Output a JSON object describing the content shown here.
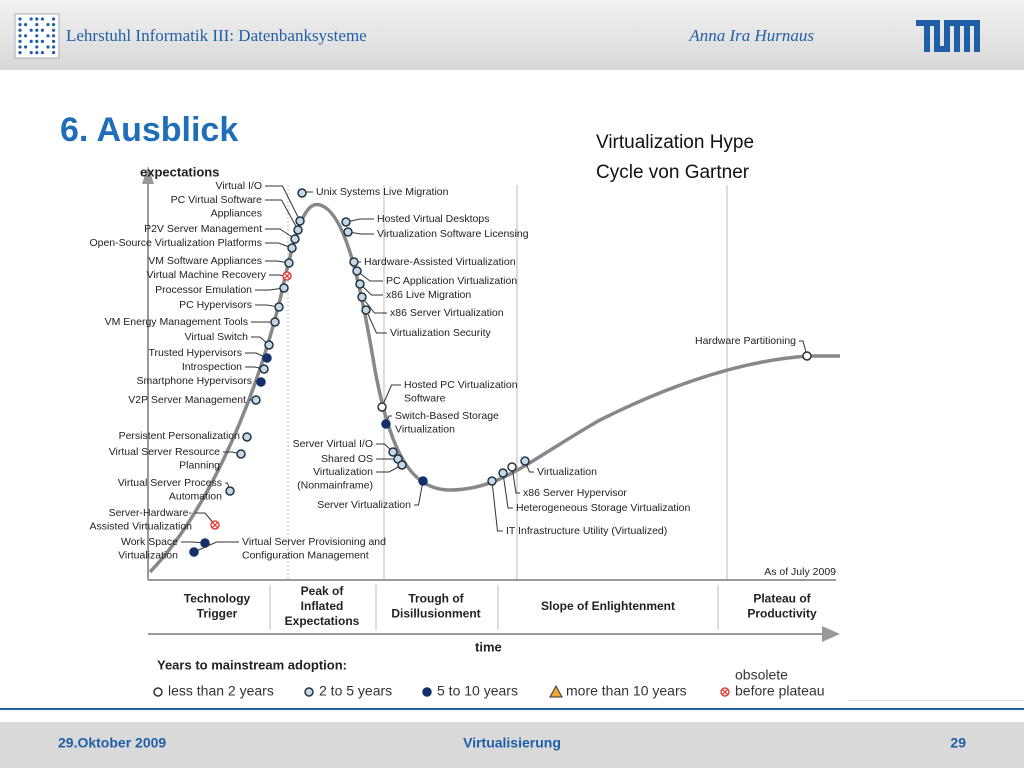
{
  "header": {
    "institute": "Lehrstuhl Informatik III: Datenbanksysteme",
    "author": "Anna Ira Hurnaus"
  },
  "title": "6. Ausblick",
  "caption": [
    "Virtualization Hype",
    "Cycle von Gartner"
  ],
  "diagram": {
    "y_axis": "expectations",
    "x_axis": "time",
    "as_of": "As of July 2009",
    "phases": [
      [
        "Technology",
        "Trigger"
      ],
      [
        "Peak of",
        "Inflated",
        "Expectations"
      ],
      [
        "Trough of",
        "Disillusionment"
      ],
      [
        "Slope of Enlightenment"
      ],
      [
        "Plateau of",
        "Productivity"
      ]
    ],
    "items": [
      {
        "label": [
          "Virtual I/O"
        ]
      },
      {
        "label": [
          "PC Virtual Software",
          "Appliances"
        ]
      },
      {
        "label": [
          "P2V Server Management"
        ]
      },
      {
        "label": [
          "Open-Source Virtualization Platforms"
        ]
      },
      {
        "label": [
          "VM Software Appliances"
        ]
      },
      {
        "label": [
          "Virtual Machine Recovery"
        ]
      },
      {
        "label": [
          "Processor Emulation"
        ]
      },
      {
        "label": [
          "PC Hypervisors"
        ]
      },
      {
        "label": [
          "VM Energy Management Tools"
        ]
      },
      {
        "label": [
          "Virtual Switch"
        ]
      },
      {
        "label": [
          "Trusted Hypervisors"
        ]
      },
      {
        "label": [
          "Introspection"
        ]
      },
      {
        "label": [
          "Smartphone Hypervisors"
        ]
      },
      {
        "label": [
          "V2P Server Management"
        ]
      },
      {
        "label": [
          "Persistent Personalization"
        ]
      },
      {
        "label": [
          "Virtual Server Resource",
          "Planning"
        ]
      },
      {
        "label": [
          "Virtual Server Process",
          "Automation"
        ]
      },
      {
        "label": [
          "Server-Hardware-",
          "Assisted Virtualization"
        ]
      },
      {
        "label": [
          "Work Space",
          "Virtualization"
        ]
      },
      {
        "label": [
          "Virtual Server Provisioning and",
          "Configuration Management"
        ]
      },
      {
        "label": [
          "Unix Systems Live Migration"
        ]
      },
      {
        "label": [
          "Hosted Virtual Desktops"
        ]
      },
      {
        "label": [
          "Virtualization Software Licensing"
        ]
      },
      {
        "label": [
          "Hardware-Assisted Virtualization"
        ]
      },
      {
        "label": [
          "PC Application Virtualization"
        ]
      },
      {
        "label": [
          "x86 Live Migration"
        ]
      },
      {
        "label": [
          "x86 Server Virtualization"
        ]
      },
      {
        "label": [
          "Virtualization Security"
        ]
      },
      {
        "label": [
          "Hosted PC Virtualization",
          "Software"
        ]
      },
      {
        "label": [
          "Switch-Based Storage",
          "Virtualization"
        ]
      },
      {
        "label": [
          "Server Virtual I/O"
        ]
      },
      {
        "label": [
          "Shared OS"
        ]
      },
      {
        "label": [
          "Virtualization",
          "(Nonmainframe)"
        ]
      },
      {
        "label": [
          "Server Virtualization"
        ]
      },
      {
        "label": [
          "Virtualization"
        ]
      },
      {
        "label": [
          "x86 Server Hypervisor"
        ]
      },
      {
        "label": [
          "Heterogeneous Storage Virtualization"
        ]
      },
      {
        "label": [
          "IT Infrastructure Utility (Virtualized)"
        ]
      },
      {
        "label": [
          "Hardware Partitioning"
        ]
      }
    ],
    "legend": {
      "title": "Years to mainstream adoption:",
      "entries": [
        [
          "less than 2 years"
        ],
        [
          "2 to 5 years"
        ],
        [
          "5 to 10 years"
        ],
        [
          "more than 10 years"
        ],
        [
          "obsolete",
          "before plateau"
        ]
      ]
    }
  },
  "footer": {
    "date": "29.Oktober 2009",
    "topic": "Virtualisierung",
    "page": "29"
  }
}
